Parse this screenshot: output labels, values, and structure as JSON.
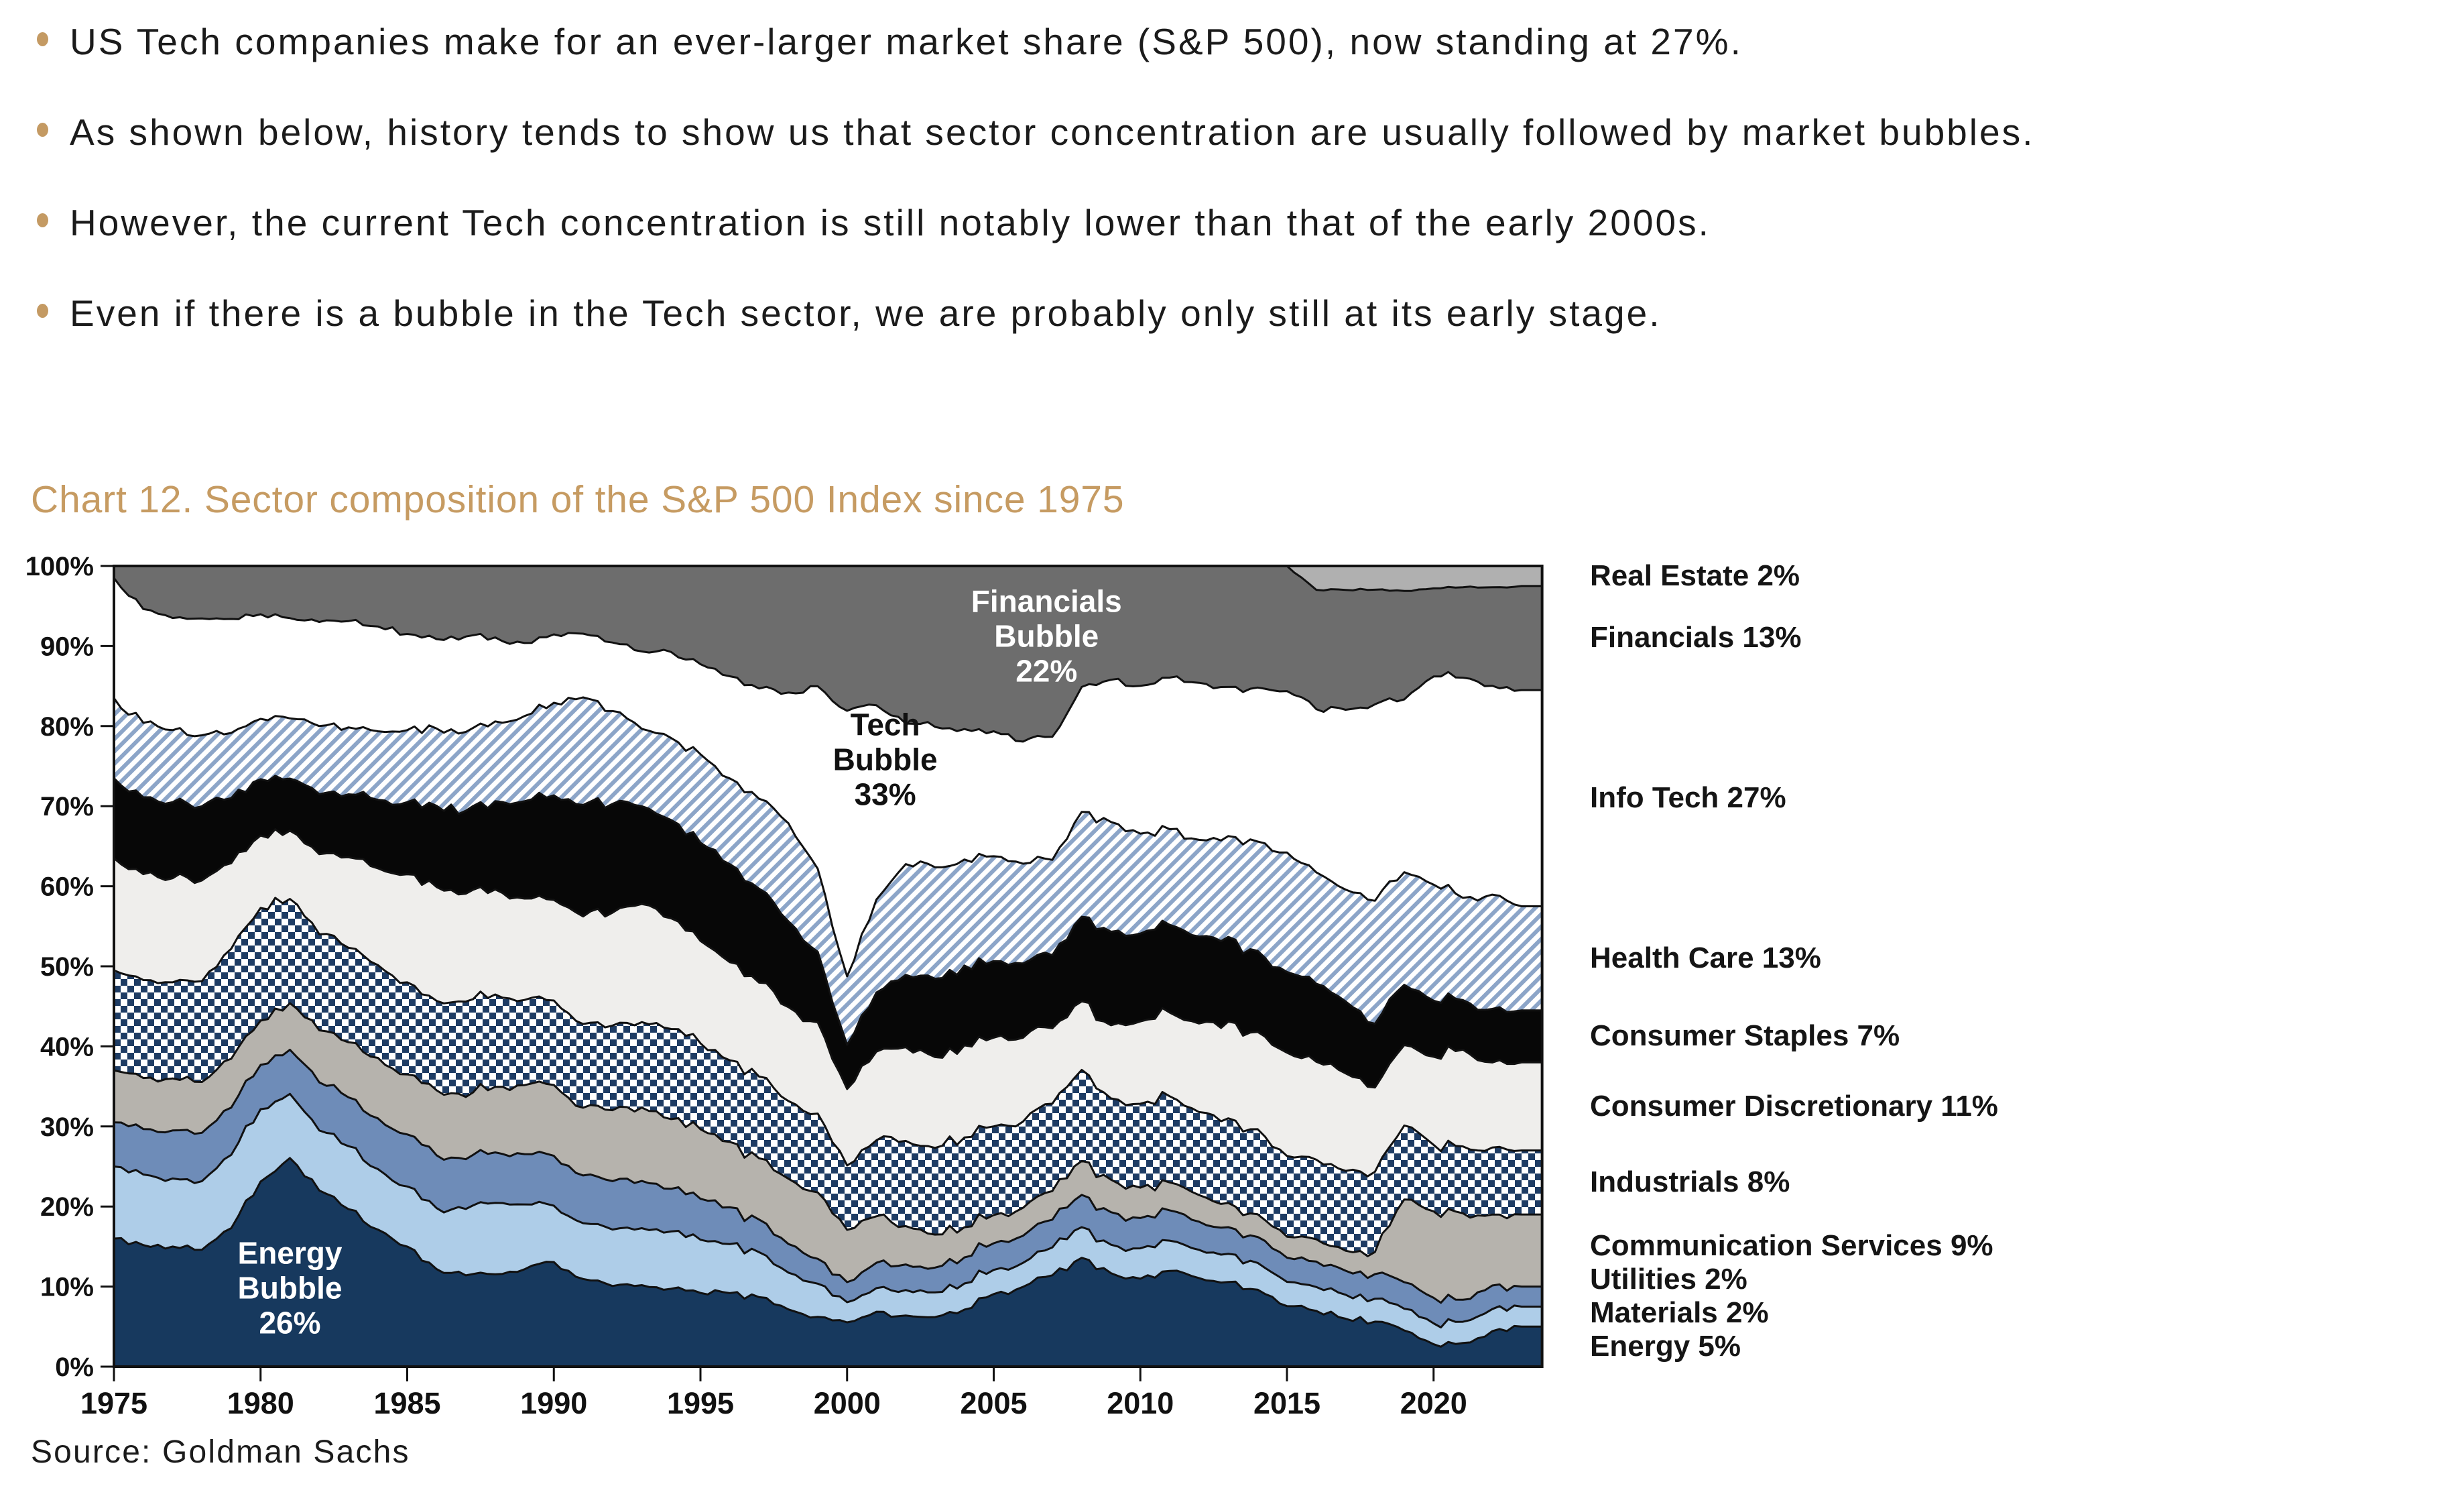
{
  "bullets": {
    "marker_color": "#C49A63",
    "items": [
      "US Tech companies make for an ever-larger market share (S&P 500), now standing at 27%.",
      "As shown below, history tends to show us that sector concentration are usually followed by market bubbles.",
      "However, the current Tech concentration is still notably lower than that of the early 2000s.",
      "Even if there is a bubble in the Tech sector, we are probably only still at its early stage."
    ]
  },
  "source": "Source: Goldman Sachs",
  "chart_data": {
    "type": "area",
    "stacked": true,
    "title": "Chart 12. Sector composition of the S&P 500 Index since 1975",
    "title_color": "#C69B62",
    "xlabel": "",
    "ylabel": "",
    "xlim": [
      1975,
      2023.7
    ],
    "ylim": [
      0,
      100
    ],
    "grid": false,
    "legend_position": "right",
    "x_ticks": [
      1975,
      1980,
      1985,
      1990,
      1995,
      2000,
      2005,
      2010,
      2015,
      2020
    ],
    "y_tick_labels": [
      "0%",
      "10%",
      "20%",
      "30%",
      "40%",
      "50%",
      "60%",
      "70%",
      "80%",
      "90%",
      "100%"
    ],
    "x": [
      1975,
      1976,
      1977,
      1978,
      1979,
      1980,
      1981,
      1982,
      1983,
      1984,
      1985,
      1986,
      1987,
      1988,
      1989,
      1990,
      1991,
      1992,
      1993,
      1994,
      1995,
      1996,
      1997,
      1998,
      1999,
      2000,
      2001,
      2002,
      2003,
      2004,
      2005,
      2006,
      2007,
      2008,
      2009,
      2010,
      2011,
      2012,
      2013,
      2014,
      2015,
      2016,
      2017,
      2018,
      2019,
      2020,
      2021,
      2022,
      2023
    ],
    "series": [
      {
        "name": "Energy",
        "slug": "energy",
        "fill": "#17395E",
        "noise": 0.5,
        "values": [
          16,
          15.5,
          15,
          14.5,
          17,
          23,
          26,
          22,
          20,
          17,
          15,
          12,
          11,
          11,
          12,
          13,
          11,
          10,
          10,
          9.5,
          9,
          9,
          8.5,
          7,
          6,
          5.5,
          6.5,
          6,
          6,
          7,
          9,
          10,
          11.5,
          13.5,
          11.5,
          11,
          12,
          11,
          10.5,
          9.5,
          7.5,
          7,
          6,
          5.5,
          4.5,
          2.8,
          3,
          4.5,
          5
        ]
      },
      {
        "name": "Materials",
        "slug": "materials",
        "fill": "#AECDE8",
        "noise": 0.3,
        "values": [
          9,
          9,
          8.5,
          8.5,
          9,
          9,
          8,
          7.5,
          8,
          7.5,
          7.5,
          7.5,
          8,
          8.5,
          8,
          7,
          7,
          7,
          7,
          7,
          6.5,
          6,
          5.5,
          4.5,
          4,
          2.5,
          2.8,
          3,
          3,
          3.2,
          3,
          3,
          3.5,
          3.8,
          3.5,
          3.8,
          3.8,
          3.5,
          3.5,
          3.3,
          3,
          3,
          3,
          2.8,
          2.7,
          2.6,
          2.7,
          2.8,
          2.5
        ]
      },
      {
        "name": "Utilities",
        "slug": "utilities",
        "fill": "#6E8CB8",
        "noise": 0.25,
        "values": [
          5.5,
          5.8,
          6,
          6,
          5.8,
          5.5,
          5.5,
          6,
          6.2,
          6.3,
          6.5,
          6.5,
          6,
          6,
          6.2,
          6.2,
          6,
          6,
          5.8,
          5.2,
          5,
          4.5,
          4,
          3.5,
          3,
          2.5,
          3,
          3,
          3,
          3.2,
          3.3,
          3.4,
          3.5,
          4,
          4,
          3.8,
          3.8,
          3.5,
          3.3,
          3.2,
          3,
          3.2,
          3,
          3,
          3.3,
          3.2,
          2.8,
          3,
          2.5
        ]
      },
      {
        "name": "Communication Services",
        "slug": "communication-services",
        "fill": "#B6B3AD",
        "noise": 0.3,
        "values": [
          6.5,
          6.5,
          6.5,
          6.3,
          6,
          5.5,
          5.8,
          6.5,
          7,
          7.5,
          7.5,
          8,
          7.5,
          7.8,
          8.5,
          8.8,
          8.5,
          8.8,
          9,
          8.5,
          8.5,
          8,
          7.5,
          8,
          8,
          6.5,
          5.5,
          4.5,
          4,
          3.7,
          3.5,
          3.5,
          3.6,
          4.2,
          4,
          3.8,
          3.5,
          3.3,
          3,
          2.8,
          2.6,
          2.8,
          2.5,
          2.7,
          10.3,
          10.8,
          11,
          9,
          9
        ]
      },
      {
        "name": "Industrials",
        "slug": "industrials",
        "fill": "pattern:checker",
        "noise": 0.45,
        "values": [
          12.5,
          12.5,
          12,
          12.5,
          13.5,
          14,
          13,
          12,
          12,
          11.5,
          11.5,
          11,
          11.5,
          11,
          10.5,
          10.5,
          10.5,
          10.5,
          10.5,
          11,
          10.5,
          10,
          10,
          9.5,
          9.5,
          8,
          9,
          10,
          10.5,
          11,
          11,
          10.8,
          11,
          11.3,
          10,
          10.5,
          10.8,
          10.3,
          10.5,
          10.5,
          10,
          10,
          10,
          9.8,
          9.2,
          8.3,
          8.5,
          8.5,
          8
        ]
      },
      {
        "name": "Consumer Discretionary",
        "slug": "consumer-discretionary",
        "fill": "#EFEEEC",
        "noise": 0.45,
        "values": [
          14,
          13.5,
          13,
          12.5,
          10.5,
          9,
          8.5,
          10,
          11.5,
          12,
          13.5,
          14,
          13,
          12.5,
          12.5,
          12.5,
          13.5,
          14,
          14.5,
          13.5,
          12.5,
          12,
          11.5,
          11.5,
          11,
          9.5,
          10.5,
          11,
          11,
          11.3,
          11,
          10.5,
          9.5,
          8.5,
          9,
          10.3,
          10.5,
          11,
          12,
          12,
          12.8,
          12.3,
          12.2,
          10.3,
          10,
          11,
          12.3,
          10.8,
          11
        ]
      },
      {
        "name": "Consumer Staples",
        "slug": "consumer-staples",
        "fill": "#070707",
        "noise": 0.4,
        "values": [
          10,
          9.8,
          9.5,
          9.2,
          8,
          7,
          6.5,
          7.5,
          8,
          8.5,
          9,
          10,
          10,
          10.5,
          12,
          13,
          14,
          13.5,
          12,
          12,
          12,
          12,
          11.5,
          10.5,
          8.5,
          5.5,
          7,
          8.5,
          9.5,
          9.8,
          9.5,
          9.3,
          9.2,
          10.5,
          11.5,
          11,
          11,
          10.8,
          10.5,
          10,
          10,
          9.8,
          9,
          7.8,
          7.5,
          7,
          6.3,
          6.8,
          6.5
        ]
      },
      {
        "name": "Health Care",
        "slug": "health-care",
        "fill": "pattern:hatch",
        "noise": 0.45,
        "values": [
          10,
          9.5,
          9,
          8.8,
          8,
          7.5,
          7.5,
          8.5,
          8.5,
          8.5,
          9,
          9.5,
          9.5,
          9.5,
          10.5,
          11.5,
          13.5,
          11.5,
          9.5,
          10,
          10.8,
          10.5,
          11,
          12,
          10,
          8.5,
          11,
          13,
          13.5,
          13,
          13,
          12.5,
          12,
          13,
          13.5,
          12.5,
          12,
          12,
          12.5,
          13.5,
          14.8,
          14,
          14,
          15,
          14,
          14.5,
          13,
          14.5,
          13
        ]
      },
      {
        "name": "Info Tech",
        "slug": "info-tech",
        "fill": "#FFFFFF",
        "noise": 0.55,
        "values": [
          15,
          14.5,
          14,
          14.5,
          14,
          13,
          12.5,
          13,
          13.5,
          13,
          12,
          11,
          11.5,
          10,
          9,
          8.5,
          8,
          8.5,
          9.5,
          10.5,
          11,
          12.5,
          13.5,
          16,
          22,
          33,
          23,
          16.5,
          17,
          16,
          15.5,
          15.3,
          15.5,
          15.5,
          17.5,
          18.5,
          19,
          19.5,
          18.5,
          19,
          20,
          20.5,
          22.5,
          24,
          21.5,
          26,
          28,
          26.5,
          27
        ]
      },
      {
        "name": "Financials",
        "slug": "financials",
        "fill": "#6D6D6D",
        "noise": 0.5,
        "values": [
          1.5,
          5.5,
          6.5,
          6.5,
          6.5,
          6,
          6.5,
          7,
          7,
          7.5,
          8.5,
          9,
          8.5,
          8.5,
          9.5,
          8.5,
          8.5,
          9.5,
          10.5,
          10.5,
          12,
          13.5,
          15,
          15.5,
          14.5,
          18,
          16.5,
          18.5,
          19.5,
          20,
          20.5,
          22,
          21.5,
          15,
          14,
          15,
          14,
          14.5,
          15,
          15,
          15.5,
          15,
          15,
          14,
          13.5,
          11,
          11.5,
          12.5,
          13
        ]
      },
      {
        "name": "Real Estate",
        "slug": "real-estate",
        "fill": "#B0B0B0",
        "noise": 0.12,
        "values": [
          0,
          0,
          0,
          0,
          0,
          0,
          0,
          0,
          0,
          0,
          0,
          0,
          0,
          0,
          0,
          0,
          0,
          0,
          0,
          0,
          0,
          0,
          0,
          0,
          0,
          0,
          0,
          0,
          0,
          0,
          0,
          0,
          0,
          0,
          0,
          0,
          0,
          0,
          0,
          0,
          0,
          3,
          3,
          2.9,
          3.1,
          2.8,
          2.7,
          2.7,
          2.5
        ]
      }
    ],
    "annotations": [
      {
        "lines": [
          "Energy",
          "Bubble",
          "26%"
        ],
        "x": 1981,
        "y_pct": 8.5,
        "color": "#ffffff"
      },
      {
        "lines": [
          "Tech",
          "Bubble",
          "33%"
        ],
        "x": 2001.3,
        "y_pct": 74.5,
        "color": "#111111"
      },
      {
        "lines": [
          "Financials",
          "Bubble",
          "22%"
        ],
        "x": 2006.8,
        "y_pct": 89.9,
        "color": "#ffffff"
      }
    ],
    "legend": [
      {
        "series": "Real Estate",
        "label": "Real Estate 2%"
      },
      {
        "series": "Financials",
        "label": "Financials 13%"
      },
      {
        "series": "Info Tech",
        "label": "Info Tech 27%"
      },
      {
        "series": "Health Care",
        "label": "Health Care 13%"
      },
      {
        "series": "Consumer Staples",
        "label": "Consumer Staples 7%"
      },
      {
        "series": "Consumer Discretionary",
        "label": "Consumer Discretionary 11%"
      },
      {
        "series": "Industrials",
        "label": "Industrials 8%"
      },
      {
        "series": "Communication Services",
        "label": "Communication Services 9%"
      },
      {
        "series": "Utilities",
        "label": "Utilities 2%"
      },
      {
        "series": "Materials",
        "label": "Materials 2%"
      },
      {
        "series": "Energy",
        "label": "Energy 5%"
      }
    ],
    "pattern_colors": {
      "checker_navy": "#1E3C64",
      "hatch_blue": "#8CA5C8"
    }
  }
}
